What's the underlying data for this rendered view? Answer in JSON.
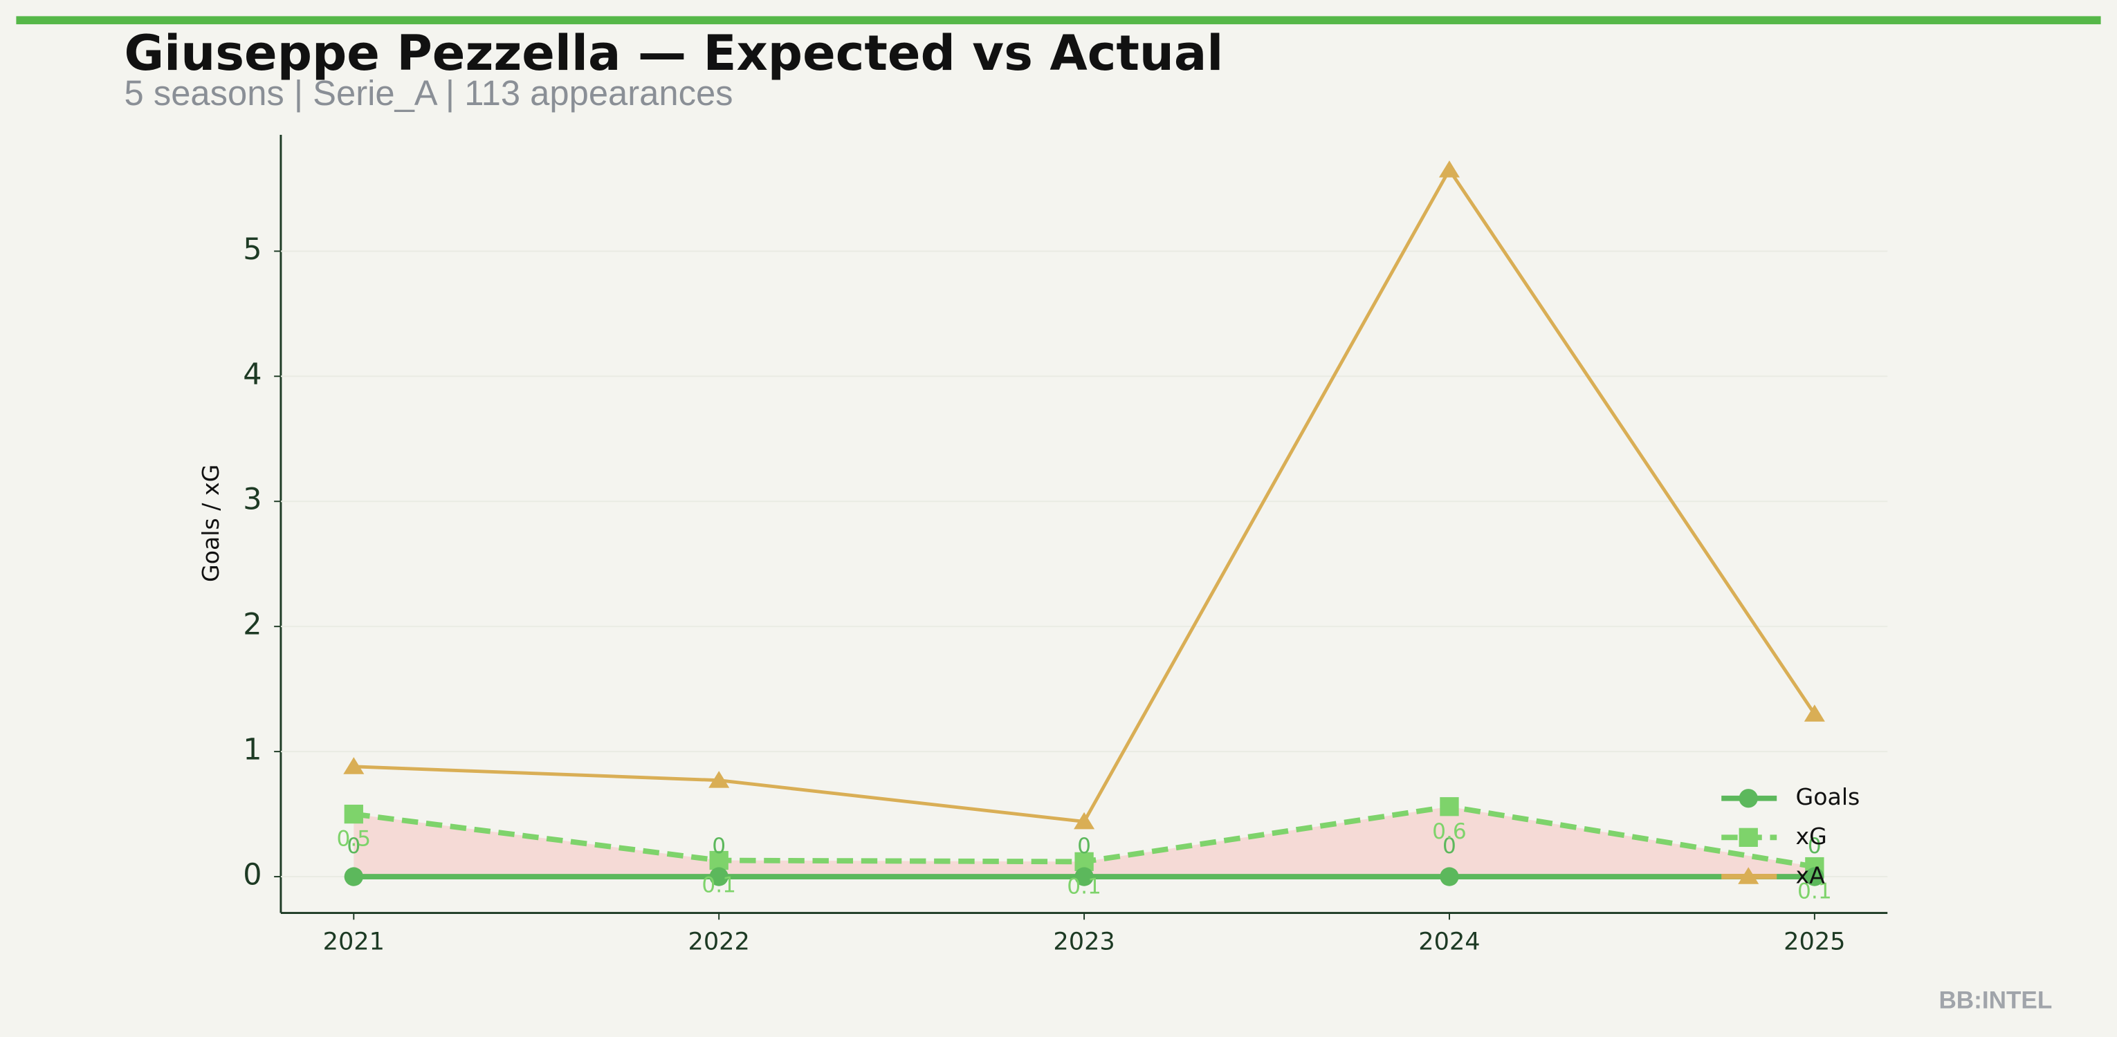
{
  "chart_data": {
    "type": "line",
    "title": "Giuseppe Pezzella — Expected vs Actual",
    "subtitle": "5 seasons | Serie_A | 113 appearances",
    "y_label": "Goals / xG",
    "categories": [
      "2021",
      "2022",
      "2023",
      "2024",
      "2025"
    ],
    "series": [
      {
        "name": "Goals",
        "color": "#5cb85c",
        "marker": "circle",
        "dashed": false,
        "show_labels": true,
        "values": [
          0,
          0,
          0,
          0,
          0
        ]
      },
      {
        "name": "xG",
        "color": "#7ed36b",
        "marker": "square",
        "dashed": true,
        "show_labels": true,
        "values": [
          0.5,
          0.13,
          0.12,
          0.56,
          0.08
        ],
        "value_labels": [
          "0.5",
          "0.1",
          "0.1",
          "0.6",
          "0.1"
        ]
      },
      {
        "name": "xA",
        "color": "#d9ae55",
        "marker": "triangle",
        "dashed": false,
        "show_labels": false,
        "values": [
          0.88,
          0.77,
          0.44,
          5.65,
          1.3
        ]
      }
    ],
    "ylim": [
      -0.29,
      5.93
    ],
    "yticks": [
      0,
      1,
      2,
      3,
      4,
      5
    ],
    "grid": true,
    "legend": "lower right",
    "shade_color": "#f5d5d1",
    "watermark": "BB:INTEL"
  }
}
